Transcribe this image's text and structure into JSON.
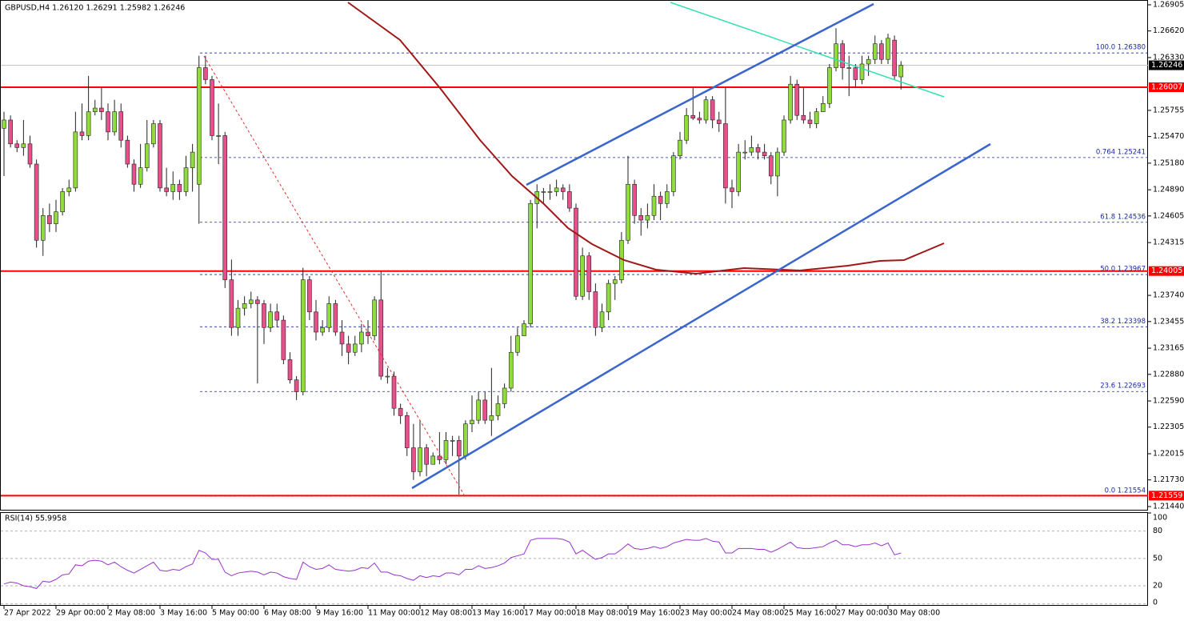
{
  "chart_data": {
    "type": "candlestick",
    "title": "GBPUSD,H4  1.26120 1.26291 1.25982 1.26246",
    "categories": [
      "27 Apr 2022",
      null,
      null,
      null,
      null,
      null,
      null,
      null,
      "29 Apr 00:00",
      null,
      null,
      null,
      null,
      null,
      null,
      null,
      "2 May 08:00",
      null,
      null,
      null,
      null,
      null,
      null,
      null,
      "3 May 16:00",
      null,
      null,
      null,
      null,
      null,
      null,
      null,
      "5 May 00:00",
      null,
      null,
      null,
      null,
      null,
      null,
      null,
      "6 May 08:00",
      null,
      null,
      null,
      null,
      null,
      null,
      null,
      "9 May 16:00",
      null,
      null,
      null,
      null,
      null,
      null,
      null,
      "11 May 00:00",
      null,
      null,
      null,
      null,
      null,
      null,
      null,
      "12 May 08:00",
      null,
      null,
      null,
      null,
      null,
      null,
      null,
      "13 May 16:00",
      null,
      null,
      null,
      null,
      null,
      null,
      null,
      "17 May 00:00",
      null,
      null,
      null,
      null,
      null,
      null,
      null,
      "18 May 08:00",
      null,
      null,
      null,
      null,
      null,
      null,
      null,
      "19 May 16:00",
      null,
      null,
      null,
      null,
      null,
      null,
      null,
      "23 May 00:00",
      null,
      null,
      null,
      null,
      null,
      null,
      null,
      "24 May 08:00",
      null,
      null,
      null,
      null,
      null,
      null,
      null,
      "25 May 16:00",
      null,
      null,
      null,
      null,
      null,
      null,
      null,
      "27 May 00:00",
      null,
      null,
      null,
      null,
      null,
      null,
      null,
      "30 May 08:00",
      null,
      null
    ],
    "candles": [
      [
        1.2556,
        1.2574,
        1.2504,
        1.2565
      ],
      [
        1.2565,
        1.257,
        1.2535,
        1.2539
      ],
      [
        1.2539,
        1.2543,
        1.253,
        1.2535
      ],
      [
        1.2535,
        1.2565,
        1.2526,
        1.2539
      ],
      [
        1.2539,
        1.2548,
        1.2513,
        1.2517
      ],
      [
        1.2517,
        1.2522,
        1.2426,
        1.2434
      ],
      [
        1.2434,
        1.2469,
        1.2417,
        1.2461
      ],
      [
        1.2461,
        1.2474,
        1.2443,
        1.2452
      ],
      [
        1.2452,
        1.2478,
        1.2443,
        1.2465
      ],
      [
        1.2465,
        1.2491,
        1.2461,
        1.2487
      ],
      [
        1.2487,
        1.25,
        1.2482,
        1.2491
      ],
      [
        1.2491,
        1.2574,
        1.2487,
        1.2552
      ],
      [
        1.2552,
        1.2583,
        1.2543,
        1.2548
      ],
      [
        1.2548,
        1.2613,
        1.2543,
        1.2574
      ],
      [
        1.2574,
        1.2587,
        1.257,
        1.2578
      ],
      [
        1.2578,
        1.26,
        1.2565,
        1.2574
      ],
      [
        1.2574,
        1.2583,
        1.2543,
        1.2552
      ],
      [
        1.2552,
        1.2587,
        1.2548,
        1.2574
      ],
      [
        1.2574,
        1.2583,
        1.2535,
        1.2543
      ],
      [
        1.2543,
        1.2548,
        1.2513,
        1.2517
      ],
      [
        1.2517,
        1.2522,
        1.2487,
        1.2495
      ],
      [
        1.2495,
        1.2539,
        1.2491,
        1.2513
      ],
      [
        1.2513,
        1.2565,
        1.2509,
        1.2539
      ],
      [
        1.2539,
        1.2565,
        1.2535,
        1.2561
      ],
      [
        1.2561,
        1.2565,
        1.2487,
        1.2491
      ],
      [
        1.2491,
        1.2513,
        1.2482,
        1.2487
      ],
      [
        1.2487,
        1.2509,
        1.2478,
        1.2495
      ],
      [
        1.2495,
        1.25,
        1.2478,
        1.2487
      ],
      [
        1.2487,
        1.2526,
        1.2482,
        1.2513
      ],
      [
        1.2513,
        1.2539,
        1.2487,
        1.253
      ],
      [
        1.2495,
        1.2635,
        1.2452,
        1.2622
      ],
      [
        1.2622,
        1.2635,
        1.2604,
        1.2609
      ],
      [
        1.2609,
        1.2613,
        1.2543,
        1.2548
      ],
      [
        1.2548,
        1.2583,
        1.2517,
        1.2548
      ],
      [
        1.2548,
        1.2552,
        1.2382,
        1.2391
      ],
      [
        1.2391,
        1.2413,
        1.233,
        1.2339
      ],
      [
        1.2339,
        1.2369,
        1.233,
        1.236
      ],
      [
        1.236,
        1.2373,
        1.2352,
        1.2365
      ],
      [
        1.2365,
        1.2378,
        1.236,
        1.2369
      ],
      [
        1.2369,
        1.2373,
        1.2278,
        1.2365
      ],
      [
        1.2365,
        1.2369,
        1.2321,
        1.2339
      ],
      [
        1.2339,
        1.2365,
        1.2334,
        1.2356
      ],
      [
        1.2356,
        1.2365,
        1.2339,
        1.2347
      ],
      [
        1.2347,
        1.2352,
        1.2299,
        1.2304
      ],
      [
        1.2304,
        1.2312,
        1.2278,
        1.2282
      ],
      [
        1.2282,
        1.2286,
        1.226,
        1.2269
      ],
      [
        1.2269,
        1.2404,
        1.2265,
        1.2391
      ],
      [
        1.2391,
        1.2395,
        1.2347,
        1.2356
      ],
      [
        1.2356,
        1.2369,
        1.2325,
        1.2334
      ],
      [
        1.2334,
        1.2347,
        1.233,
        1.2339
      ],
      [
        1.2339,
        1.2373,
        1.2334,
        1.2365
      ],
      [
        1.2365,
        1.2369,
        1.233,
        1.2334
      ],
      [
        1.2334,
        1.2347,
        1.2308,
        1.2321
      ],
      [
        1.2321,
        1.233,
        1.2299,
        1.2312
      ],
      [
        1.2312,
        1.233,
        1.2308,
        1.2321
      ],
      [
        1.2321,
        1.2343,
        1.2312,
        1.2334
      ],
      [
        1.2334,
        1.2347,
        1.2321,
        1.233
      ],
      [
        1.233,
        1.2373,
        1.2325,
        1.2369
      ],
      [
        1.2369,
        1.24,
        1.2282,
        1.2286
      ],
      [
        1.2286,
        1.2295,
        1.2278,
        1.2286
      ],
      [
        1.2286,
        1.2291,
        1.2243,
        1.2251
      ],
      [
        1.2251,
        1.2256,
        1.2234,
        1.2243
      ],
      [
        1.2243,
        1.2247,
        1.2199,
        1.2208
      ],
      [
        1.2208,
        1.2234,
        1.2173,
        1.2182
      ],
      [
        1.2182,
        1.2238,
        1.2177,
        1.2208
      ],
      [
        1.2208,
        1.2212,
        1.2177,
        1.219
      ],
      [
        1.219,
        1.2203,
        1.219,
        1.2199
      ],
      [
        1.2199,
        1.2225,
        1.219,
        1.2195
      ],
      [
        1.2195,
        1.2225,
        1.219,
        1.2216
      ],
      [
        1.2216,
        1.2221,
        1.2199,
        1.2216
      ],
      [
        1.2216,
        1.2221,
        1.2157,
        1.2199
      ],
      [
        1.2199,
        1.2238,
        1.2195,
        1.2234
      ],
      [
        1.2234,
        1.2265,
        1.2225,
        1.2238
      ],
      [
        1.2238,
        1.2269,
        1.2234,
        1.226
      ],
      [
        1.226,
        1.2269,
        1.2234,
        1.2238
      ],
      [
        1.2238,
        1.2295,
        1.2221,
        1.2243
      ],
      [
        1.2243,
        1.2265,
        1.2238,
        1.2256
      ],
      [
        1.2256,
        1.2278,
        1.2251,
        1.2273
      ],
      [
        1.2273,
        1.233,
        1.2269,
        1.2312
      ],
      [
        1.2312,
        1.2339,
        1.2308,
        1.233
      ],
      [
        1.233,
        1.2347,
        1.233,
        1.2343
      ],
      [
        1.2343,
        1.2478,
        1.2339,
        1.2474
      ],
      [
        1.2474,
        1.2495,
        1.2447,
        1.2487
      ],
      [
        1.2487,
        1.2491,
        1.2474,
        1.2487
      ],
      [
        1.2487,
        1.2495,
        1.2478,
        1.2487
      ],
      [
        1.2487,
        1.25,
        1.2482,
        1.2491
      ],
      [
        1.2491,
        1.2495,
        1.2478,
        1.2487
      ],
      [
        1.2487,
        1.2495,
        1.2465,
        1.2469
      ],
      [
        1.2469,
        1.2474,
        1.2369,
        1.2373
      ],
      [
        1.2373,
        1.2426,
        1.2369,
        1.2417
      ],
      [
        1.2417,
        1.2421,
        1.2369,
        1.2378
      ],
      [
        1.2378,
        1.2387,
        1.233,
        1.2339
      ],
      [
        1.2339,
        1.2365,
        1.2334,
        1.2356
      ],
      [
        1.2356,
        1.2391,
        1.2347,
        1.2387
      ],
      [
        1.2387,
        1.2395,
        1.2369,
        1.2391
      ],
      [
        1.2391,
        1.2443,
        1.2387,
        1.2434
      ],
      [
        1.2434,
        1.2526,
        1.243,
        1.2495
      ],
      [
        1.2495,
        1.25,
        1.2452,
        1.2461
      ],
      [
        1.2461,
        1.2469,
        1.2439,
        1.2456
      ],
      [
        1.2456,
        1.2474,
        1.2447,
        1.2461
      ],
      [
        1.2461,
        1.2495,
        1.2456,
        1.2482
      ],
      [
        1.2482,
        1.2487,
        1.2456,
        1.2474
      ],
      [
        1.2474,
        1.2495,
        1.2469,
        1.2487
      ],
      [
        1.2487,
        1.253,
        1.2482,
        1.2526
      ],
      [
        1.2526,
        1.2552,
        1.2522,
        1.2543
      ],
      [
        1.2543,
        1.2578,
        1.2539,
        1.257
      ],
      [
        1.257,
        1.26,
        1.2565,
        1.2567
      ],
      [
        1.2567,
        1.2574,
        1.2561,
        1.2565
      ],
      [
        1.2565,
        1.2591,
        1.2561,
        1.2587
      ],
      [
        1.2587,
        1.2591,
        1.2556,
        1.2565
      ],
      [
        1.2565,
        1.2574,
        1.2552,
        1.2561
      ],
      [
        1.2561,
        1.26,
        1.2474,
        1.2491
      ],
      [
        1.2491,
        1.25,
        1.2469,
        1.2487
      ],
      [
        1.2487,
        1.2539,
        1.2482,
        1.253
      ],
      [
        1.253,
        1.2543,
        1.2522,
        1.253
      ],
      [
        1.253,
        1.2548,
        1.2526,
        1.2535
      ],
      [
        1.2535,
        1.2539,
        1.2522,
        1.253
      ],
      [
        1.253,
        1.2539,
        1.2522,
        1.2526
      ],
      [
        1.2526,
        1.253,
        1.2495,
        1.2504
      ],
      [
        1.2504,
        1.2535,
        1.2482,
        1.253
      ],
      [
        1.253,
        1.257,
        1.2526,
        1.2565
      ],
      [
        1.2565,
        1.2613,
        1.2561,
        1.2604
      ],
      [
        1.2604,
        1.2609,
        1.2565,
        1.257
      ],
      [
        1.257,
        1.26,
        1.2561,
        1.2565
      ],
      [
        1.2565,
        1.2574,
        1.2556,
        1.2561
      ],
      [
        1.2561,
        1.2578,
        1.2556,
        1.2574
      ],
      [
        1.2574,
        1.2591,
        1.2574,
        1.2583
      ],
      [
        1.2583,
        1.2626,
        1.2578,
        1.2622
      ],
      [
        1.2622,
        1.2665,
        1.2618,
        1.2648
      ],
      [
        1.2648,
        1.2652,
        1.2609,
        1.2622
      ],
      [
        1.2622,
        1.2635,
        1.2591,
        1.2622
      ],
      [
        1.2622,
        1.2626,
        1.26,
        1.2609
      ],
      [
        1.2609,
        1.2635,
        1.2604,
        1.2626
      ],
      [
        1.2626,
        1.2635,
        1.2613,
        1.2631
      ],
      [
        1.2631,
        1.2657,
        1.2626,
        1.2648
      ],
      [
        1.2648,
        1.2652,
        1.2626,
        1.2631
      ],
      [
        1.2631,
        1.2659,
        1.2626,
        1.2654
      ],
      [
        1.2652,
        1.2657,
        1.2609,
        1.2613
      ],
      [
        1.2612,
        1.26291,
        1.25982,
        1.26246
      ]
    ],
    "up_color": "#8fdc3c",
    "down_color": "#e8508c",
    "ylim": [
      1.21405,
      1.26957
    ],
    "yticks": [
      1.26905,
      {
        "value": 1.2662,
        "label": "1.26620"
      },
      {
        "value": 1.2633,
        "label": "1.26330"
      },
      1.25755,
      {
        "value": 1.2547,
        "label": "1.25470"
      },
      {
        "value": 1.2518,
        "label": "1.25180"
      },
      {
        "value": 1.2489,
        "label": "1.24890"
      },
      1.24605,
      1.24315,
      {
        "value": 1.2374,
        "label": "1.23740"
      },
      1.23455,
      1.23165,
      {
        "value": 1.2288,
        "label": "1.22880"
      },
      {
        "value": 1.2259,
        "label": "1.22590"
      },
      1.22305,
      1.22015,
      {
        "value": 1.2173,
        "label": "1.21730"
      },
      {
        "value": 1.2144,
        "label": "1.21440"
      }
    ],
    "levels": [
      1.26007,
      1.24005,
      1.21559
    ],
    "level_color": "#ff0000",
    "fibonacci": [
      {
        "value": 1.2638,
        "label": "100.0 1.26380"
      },
      {
        "value": 1.25241,
        "label": "0.764 1.25241"
      },
      {
        "value": 1.24536,
        "label": "61.8 1.24536"
      },
      {
        "value": 1.23967,
        "label": "50.0 1.23967"
      },
      {
        "value": 1.23398,
        "label": "38.2 1.23398"
      },
      {
        "value": 1.22693,
        "label": "23.6 1.22693"
      },
      {
        "value": 1.21554,
        "label": "0.0 1.21554"
      }
    ],
    "fib_color": "#1a2a9c",
    "rsi": {
      "title": "RSI(14) 55.9958",
      "color": "#9933cc",
      "ylim": [
        -2,
        100
      ],
      "yticks": [
        100,
        80,
        50,
        20,
        0
      ],
      "values": [
        22,
        24,
        23,
        20,
        19,
        17,
        25,
        24,
        27,
        32,
        33,
        43,
        42,
        47,
        48,
        47,
        43,
        46,
        41,
        37,
        34,
        38,
        42,
        46,
        37,
        36,
        38,
        37,
        41,
        44,
        59,
        56,
        49,
        49,
        35,
        31,
        34,
        35,
        36,
        35,
        32,
        35,
        34,
        30,
        28,
        27,
        46,
        41,
        38,
        39,
        43,
        38,
        37,
        36,
        37,
        40,
        39,
        45,
        35,
        35,
        32,
        31,
        28,
        26,
        31,
        29,
        31,
        30,
        34,
        34,
        32,
        38,
        38,
        42,
        39,
        40,
        42,
        45,
        51,
        53,
        55,
        70,
        72,
        72,
        72,
        72,
        71,
        68,
        55,
        59,
        54,
        49,
        51,
        55,
        55,
        60,
        66,
        61,
        60,
        61,
        63,
        61,
        63,
        67,
        69,
        71,
        70,
        70,
        72,
        69,
        68,
        56,
        56,
        61,
        61,
        61,
        60,
        60,
        57,
        60,
        64,
        68,
        62,
        61,
        61,
        62,
        63,
        67,
        70,
        65,
        65,
        63,
        65,
        65,
        67,
        64,
        67,
        54,
        55.9958
      ]
    }
  }
}
